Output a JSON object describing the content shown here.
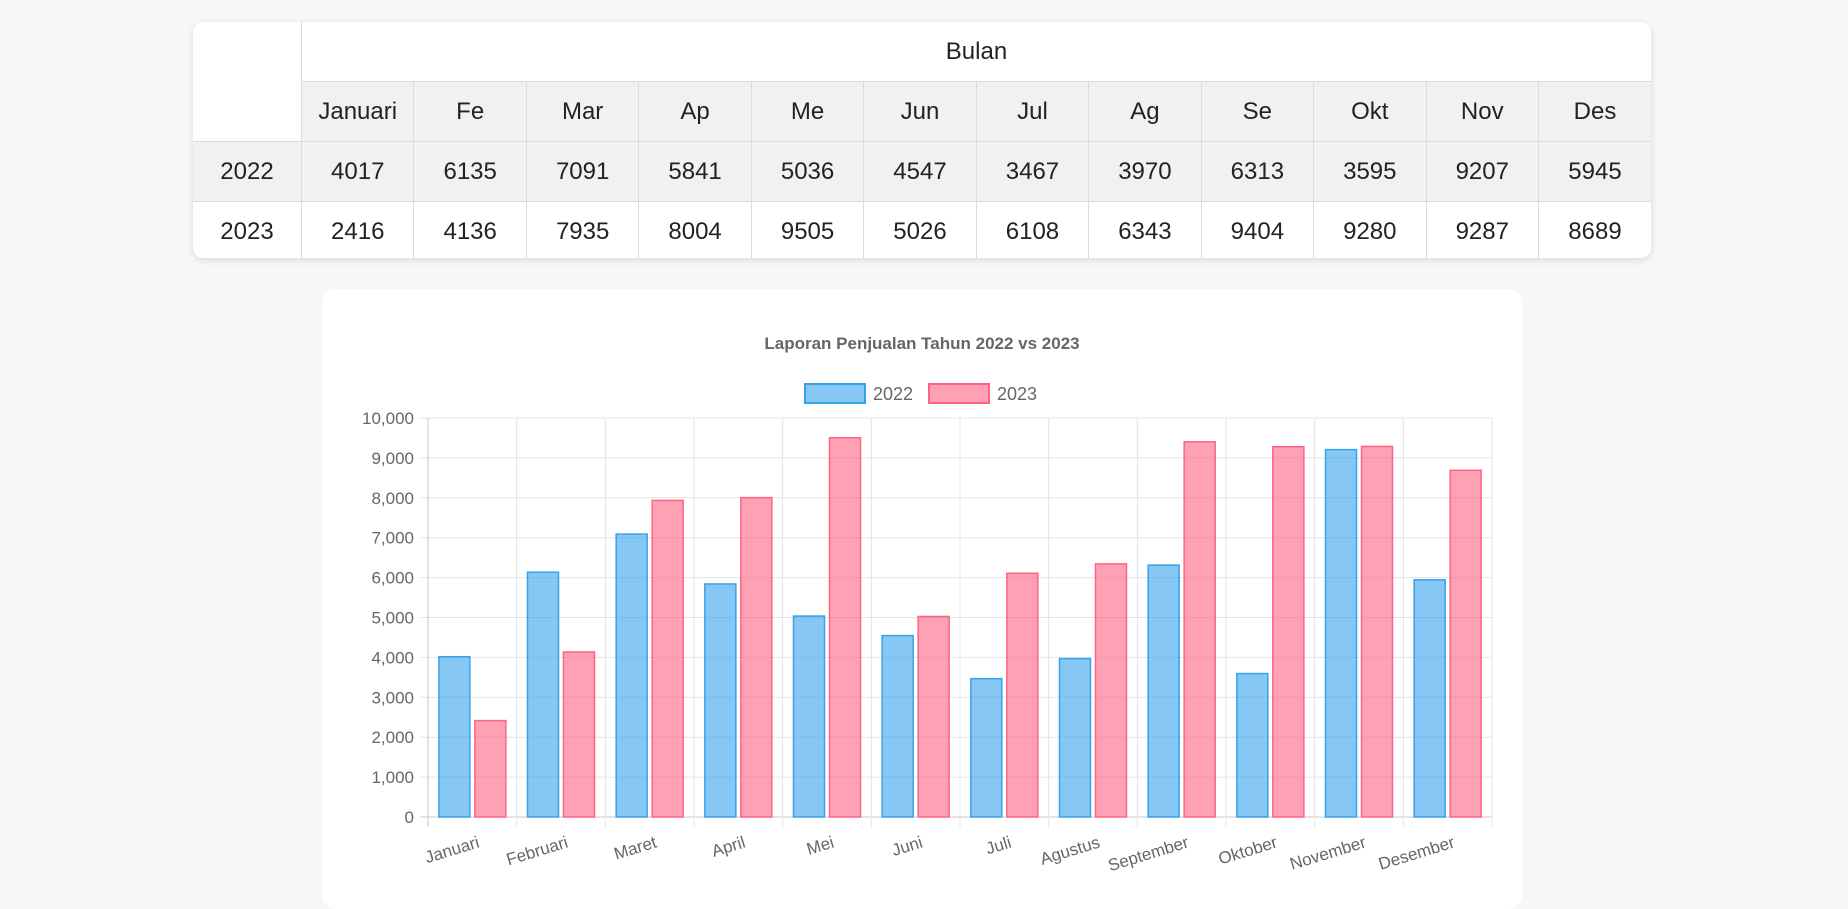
{
  "table": {
    "header_group": "Bulan",
    "months": [
      "Januari",
      "Fe",
      "Mar",
      "Ap",
      "Me",
      "Jun",
      "Jul",
      "Ag",
      "Se",
      "Okt",
      "Nov",
      "Des"
    ],
    "rows": [
      {
        "year": "2022",
        "values": [
          "4017",
          "6135",
          "7091",
          "5841",
          "5036",
          "4547",
          "3467",
          "3970",
          "6313",
          "3595",
          "9207",
          "5945"
        ]
      },
      {
        "year": "2023",
        "values": [
          "2416",
          "4136",
          "7935",
          "8004",
          "9505",
          "5026",
          "6108",
          "6343",
          "9404",
          "9280",
          "9287",
          "8689"
        ]
      }
    ]
  },
  "chart_data": {
    "type": "bar",
    "title": "Laporan Penjualan Tahun 2022 vs 2023",
    "categories": [
      "Januari",
      "Februari",
      "Maret",
      "April",
      "Mei",
      "Juni",
      "Juli",
      "Agustus",
      "September",
      "Oktober",
      "November",
      "Desember"
    ],
    "series": [
      {
        "name": "2022",
        "values": [
          4017,
          6135,
          7091,
          5841,
          5036,
          4547,
          3467,
          3970,
          6313,
          3595,
          9207,
          5945
        ],
        "color": "#36a2eb"
      },
      {
        "name": "2023",
        "values": [
          2416,
          4136,
          7935,
          8004,
          9505,
          5026,
          6108,
          6343,
          9404,
          9280,
          9287,
          8689
        ],
        "color": "#ff6384"
      }
    ],
    "ylim": [
      0,
      10000
    ],
    "yticks": [
      "0",
      "1,000",
      "2,000",
      "3,000",
      "4,000",
      "5,000",
      "6,000",
      "7,000",
      "8,000",
      "9,000",
      "10,000"
    ],
    "grid": true,
    "legend": "top"
  }
}
